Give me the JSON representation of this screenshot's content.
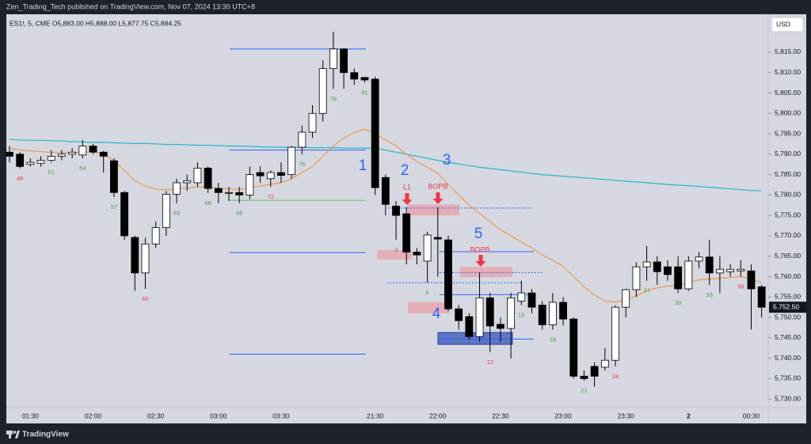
{
  "header": {
    "publisher": "Zen_Trading_Tech published on TradingView.com, Nov 07, 2024 13:30 UTC+8",
    "brand": "TradingView"
  },
  "chart_data": {
    "type": "candlestick",
    "legend": "ES1!, 5, CME  O5,883.00  H5,888.00  L5,877.75  C5,884.25",
    "currency": "USD",
    "categories": [
      null,
      null,
      "01:30",
      null,
      null,
      null,
      null,
      null,
      "02:00",
      null,
      null,
      null,
      null,
      null,
      "02:30",
      null,
      null,
      null,
      null,
      null,
      "03:00",
      null,
      null,
      null,
      null,
      null,
      "03:30",
      null,
      null,
      null,
      null,
      null,
      null,
      null,
      null,
      "21:30",
      null,
      null,
      null,
      null,
      null,
      "22:00",
      null,
      null,
      null,
      null,
      null,
      "22:30",
      null,
      null,
      null,
      null,
      null,
      "23:00",
      null,
      null,
      null,
      null,
      null,
      "23:30",
      null,
      null,
      null,
      null,
      null,
      "2",
      null,
      null,
      null,
      null,
      null,
      "00:30",
      null
    ],
    "open": [
      5790.5,
      5790,
      5787.5,
      5787.8,
      5788.5,
      5789.5,
      5790,
      5789.8,
      5792,
      5790.5,
      5788.4,
      5780.6,
      5769.6,
      5760.9,
      5768,
      5772,
      5780.2,
      5783,
      5783,
      5786.6,
      5781.6,
      5780.5,
      5780.6,
      5780,
      5785.5,
      5784,
      5785.5,
      5785,
      5791.7,
      5795.4,
      5800,
      5811,
      5815.8,
      5810,
      5808.8,
      5808.4,
      5784.3,
      5777.3,
      5775.4,
      5766,
      5763.8,
      5769.6,
      5769,
      5752.1,
      5750.2,
      5745.3,
      5754.8,
      5748.3,
      5747.3,
      5754,
      5756,
      5753,
      5748.2,
      5753.7,
      5749.6,
      5735.6,
      5738,
      5737.8,
      5739.5,
      5752.5,
      5756.8,
      5762.4,
      5763.6,
      5762.4,
      5762.4,
      5757,
      5763.8,
      5764.8,
      5760.9,
      5761.2,
      5761.4,
      5761.4,
      5757.5
    ],
    "high": [
      5792,
      5790.5,
      5789,
      5789.5,
      5791,
      5791,
      5791.5,
      5793.5,
      5792.5,
      5790.8,
      5789,
      5781,
      5770,
      5769.5,
      5773.5,
      5781,
      5784,
      5785,
      5788,
      5787,
      5783,
      5782,
      5782,
      5787,
      5787,
      5786,
      5788,
      5792,
      5797,
      5802,
      5813,
      5820,
      5816,
      5811,
      5809,
      5809,
      5785,
      5778.5,
      5777,
      5767,
      5771,
      5777,
      5770,
      5753,
      5751,
      5761,
      5756,
      5750,
      5756,
      5759,
      5757,
      5754,
      5756,
      5755,
      5750,
      5737,
      5739,
      5742.5,
      5753,
      5757,
      5763.5,
      5767.5,
      5765,
      5764,
      5765,
      5765,
      5766,
      5769,
      5765,
      5763,
      5764,
      5763,
      5758
    ],
    "low": [
      5788,
      5786.5,
      5787,
      5787,
      5788,
      5788.5,
      5789,
      5789,
      5790,
      5785.5,
      5779.5,
      5769,
      5756.5,
      5757,
      5767,
      5770,
      5778,
      5781,
      5782,
      5780.5,
      5778,
      5778.5,
      5778,
      5779,
      5783,
      5782,
      5783,
      5784,
      5790,
      5794,
      5798,
      5806,
      5806,
      5807,
      5807.5,
      5780,
      5775,
      5769,
      5763,
      5763,
      5758.5,
      5760,
      5751.5,
      5747,
      5744.5,
      5744,
      5741.5,
      5744,
      5740,
      5753,
      5751,
      5747,
      5747,
      5748,
      5735,
      5734.5,
      5733,
      5737,
      5738,
      5750,
      5755,
      5759,
      5758,
      5759,
      5756,
      5756.5,
      5762,
      5758,
      5756,
      5760,
      5760,
      5747,
      5750
    ],
    "close": [
      5789.5,
      5787,
      5788,
      5788.5,
      5789.5,
      5790,
      5790.5,
      5792,
      5790.5,
      5789.5,
      5780.6,
      5770,
      5760.9,
      5768,
      5772,
      5780.2,
      5783,
      5783.5,
      5786.6,
      5781.6,
      5780.6,
      5780.6,
      5780,
      5785,
      5784.7,
      5785.5,
      5784.8,
      5791.7,
      5795.4,
      5800,
      5811,
      5815.8,
      5810,
      5808.4,
      5808.2,
      5781.8,
      5777.7,
      5775,
      5766,
      5765.3,
      5770.2,
      5769.2,
      5752.1,
      5749.2,
      5745.3,
      5754.8,
      5747.9,
      5747.3,
      5754.8,
      5756,
      5752.5,
      5748.2,
      5753.7,
      5749.6,
      5735.6,
      5735,
      5735.6,
      5739.5,
      5752.5,
      5756.8,
      5762.4,
      5763.6,
      5761.2,
      5760.5,
      5757,
      5763.8,
      5764.8,
      5760.9,
      5761.8,
      5761.8,
      5761.8,
      5757,
      5752.5
    ],
    "up_color": "#ffffff",
    "down_color": "#000000",
    "lines": [
      {
        "color": "#26b5c6",
        "values": [
          5793.6,
          5793.5,
          5793.4,
          5793.4,
          5793.3,
          5793.2,
          5793.1,
          5793.0,
          5792.9,
          5792.9,
          5792.8,
          5792.7,
          5792.6,
          5792.6,
          5792.5,
          5792.4,
          5792.4,
          5792.3,
          5792.2,
          5792.2,
          5792.1,
          5792.0,
          5792.0,
          5791.9,
          5791.8,
          5791.8,
          5791.7,
          5791.7,
          5791.7,
          5791.6,
          5791.6,
          5791.6,
          5791.5,
          5791.5,
          5791.5,
          5791.4,
          5791,
          5790.5,
          5790,
          5789.5,
          5789,
          5788.5,
          5788,
          5787.6,
          5787.2,
          5786.8,
          5786.5,
          5786.2,
          5785.9,
          5785.6,
          5785.3,
          5785,
          5784.8,
          5784.6,
          5784.4,
          5784.2,
          5784.0,
          5783.8,
          5783.6,
          5783.4,
          5783.2,
          5783.0,
          5782.8,
          5782.6,
          5782.4,
          5782.3,
          5782.1,
          5781.9,
          5781.7,
          5781.5,
          5781.3,
          5781.1,
          5781.0
        ]
      },
      {
        "color": "#f0964a",
        "values": [
          5791.5,
          5791,
          5790.8,
          5790.6,
          5790.5,
          5790.4,
          5790.4,
          5790.5,
          5790.6,
          5790,
          5788.5,
          5786,
          5783.5,
          5782.2,
          5781.5,
          5781.3,
          5781.5,
          5781.7,
          5782,
          5781.9,
          5781.7,
          5781.5,
          5781.3,
          5781.8,
          5782.2,
          5782.6,
          5783,
          5784,
          5785.5,
          5787,
          5789.5,
          5792,
          5794,
          5795.3,
          5796.2,
          5795,
          5793.5,
          5792,
          5790,
          5788.2,
          5786.8,
          5785.3,
          5782.5,
          5780,
          5777.5,
          5775.5,
          5773.5,
          5771.5,
          5770,
          5768.5,
          5767,
          5765.3,
          5764,
          5762.5,
          5760,
          5757.5,
          5755.5,
          5754,
          5753.8,
          5754.2,
          5755.3,
          5756.5,
          5757.2,
          5757.7,
          5757.8,
          5758.5,
          5759.2,
          5759.4,
          5759.6,
          5759.8,
          5760,
          5759.5,
          5758.5
        ]
      }
    ],
    "bar_counts": [
      null,
      {
        "text": "48",
        "color": "#f23645"
      },
      null,
      null,
      {
        "text": "51",
        "color": "#43a047"
      },
      null,
      null,
      {
        "text": "54",
        "color": "#43a047"
      },
      null,
      null,
      {
        "text": "57",
        "color": "#43a047"
      },
      null,
      null,
      {
        "text": "60",
        "color": "#f23645"
      },
      null,
      null,
      {
        "text": "63",
        "color": "#43a047"
      },
      null,
      null,
      {
        "text": "66",
        "color": "#43a047"
      },
      null,
      null,
      {
        "text": "69",
        "color": "#43a047"
      },
      null,
      null,
      {
        "text": "72",
        "color": "#f23645"
      },
      null,
      null,
      {
        "text": "75",
        "color": "#43a047"
      },
      null,
      null,
      {
        "text": "78",
        "color": "#43a047"
      },
      null,
      null,
      {
        "text": "81",
        "color": "#43a047"
      },
      null,
      null,
      {
        "text": "3",
        "color": "#43a047"
      },
      null,
      null,
      {
        "text": "6",
        "color": "#43a047"
      },
      null,
      null,
      {
        "text": "9",
        "color": "#43a047"
      },
      null,
      null,
      {
        "text": "12",
        "color": "#f23645"
      },
      null,
      null,
      {
        "text": "15",
        "color": "#43a047"
      },
      null,
      null,
      {
        "text": "18",
        "color": "#43a047"
      },
      null,
      null,
      {
        "text": "21",
        "color": "#43a047"
      },
      null,
      null,
      {
        "text": "24",
        "color": "#f23645"
      },
      null,
      null,
      {
        "text": "27",
        "color": "#43a047"
      },
      null,
      null,
      {
        "text": "30",
        "color": "#43a047"
      },
      null,
      null,
      {
        "text": "33",
        "color": "#43a047"
      },
      null,
      null,
      {
        "text": "36",
        "color": "#f23645"
      },
      null,
      null
    ],
    "levels": [
      {
        "price": 5815.8,
        "color": "#2962ff",
        "dashed": false
      },
      {
        "price": 5791,
        "color": "#2962ff",
        "dashed": false
      },
      {
        "price": 5778.7,
        "color": "#66bb6a",
        "dashed": false
      },
      {
        "price": 5765.9,
        "color": "#2962ff",
        "dashed": false
      },
      {
        "price": 5741,
        "color": "#2962ff",
        "dashed": false
      },
      {
        "price": 5776.8,
        "color": "#2962ff",
        "dashed": true
      },
      {
        "price": 5766.1,
        "color": "#2962ff",
        "dashed": false
      },
      {
        "price": 5761,
        "color": "#2962ff",
        "dashed": true
      },
      {
        "price": 5758.5,
        "color": "#2962ff",
        "dashed": true
      },
      {
        "price": 5755.6,
        "color": "#2962ff",
        "dashed": false
      },
      {
        "price": 5744.7,
        "color": "#2962ff",
        "dashed": false
      }
    ],
    "zones": [
      {
        "top": 5777.7,
        "bottom": 5775,
        "color": "#e8a3aa"
      },
      {
        "top": 5766.5,
        "bottom": 5764.2,
        "color": "#e8a3aa"
      },
      {
        "top": 5753.7,
        "bottom": 5751,
        "color": "#e8a3aa"
      },
      {
        "top": 5762.4,
        "bottom": 5759.9,
        "color": "#e8a3aa"
      },
      {
        "top": 5746.3,
        "bottom": 5743.4,
        "color": "#4a63c0"
      }
    ],
    "annotations": [
      {
        "text": "1",
        "color": "#2962ff"
      },
      {
        "text": "2",
        "color": "#2962ff"
      },
      {
        "text": "3",
        "color": "#2962ff"
      },
      {
        "text": "4",
        "color": "#2962ff"
      },
      {
        "text": "5",
        "color": "#2962ff"
      },
      {
        "text": "L1",
        "color": "#f23645"
      },
      {
        "text": "BOPB",
        "color": "#f23645"
      },
      {
        "text": "BOPB",
        "color": "#f23645"
      }
    ],
    "last_price": {
      "value": 5752.5,
      "label": "5,752.50"
    },
    "ylim": [
      5727.9,
      5824.3
    ],
    "yticks": [
      {
        "value": 5730,
        "label": "5,730.00"
      },
      {
        "value": 5735,
        "label": "5,735.00"
      },
      {
        "value": 5740,
        "label": "5,740.00"
      },
      {
        "value": 5745,
        "label": "5,745.00"
      },
      {
        "value": 5750,
        "label": "5,750.00"
      },
      {
        "value": 5755,
        "label": "5,755.00"
      },
      {
        "value": 5760,
        "label": "5,760.00"
      },
      {
        "value": 5765,
        "label": "5,765.00"
      },
      {
        "value": 5770,
        "label": "5,770.00"
      },
      {
        "value": 5775,
        "label": "5,775.00"
      },
      {
        "value": 5780,
        "label": "5,780.00"
      },
      {
        "value": 5785,
        "label": "5,785.00"
      },
      {
        "value": 5790,
        "label": "5,790.00"
      },
      {
        "value": 5795,
        "label": "5,795.00"
      },
      {
        "value": 5800,
        "label": "5,800.00"
      },
      {
        "value": 5805,
        "label": "5,805.00"
      },
      {
        "value": 5810,
        "label": "5,810.00"
      },
      {
        "value": 5815,
        "label": "5,815.00"
      }
    ]
  }
}
